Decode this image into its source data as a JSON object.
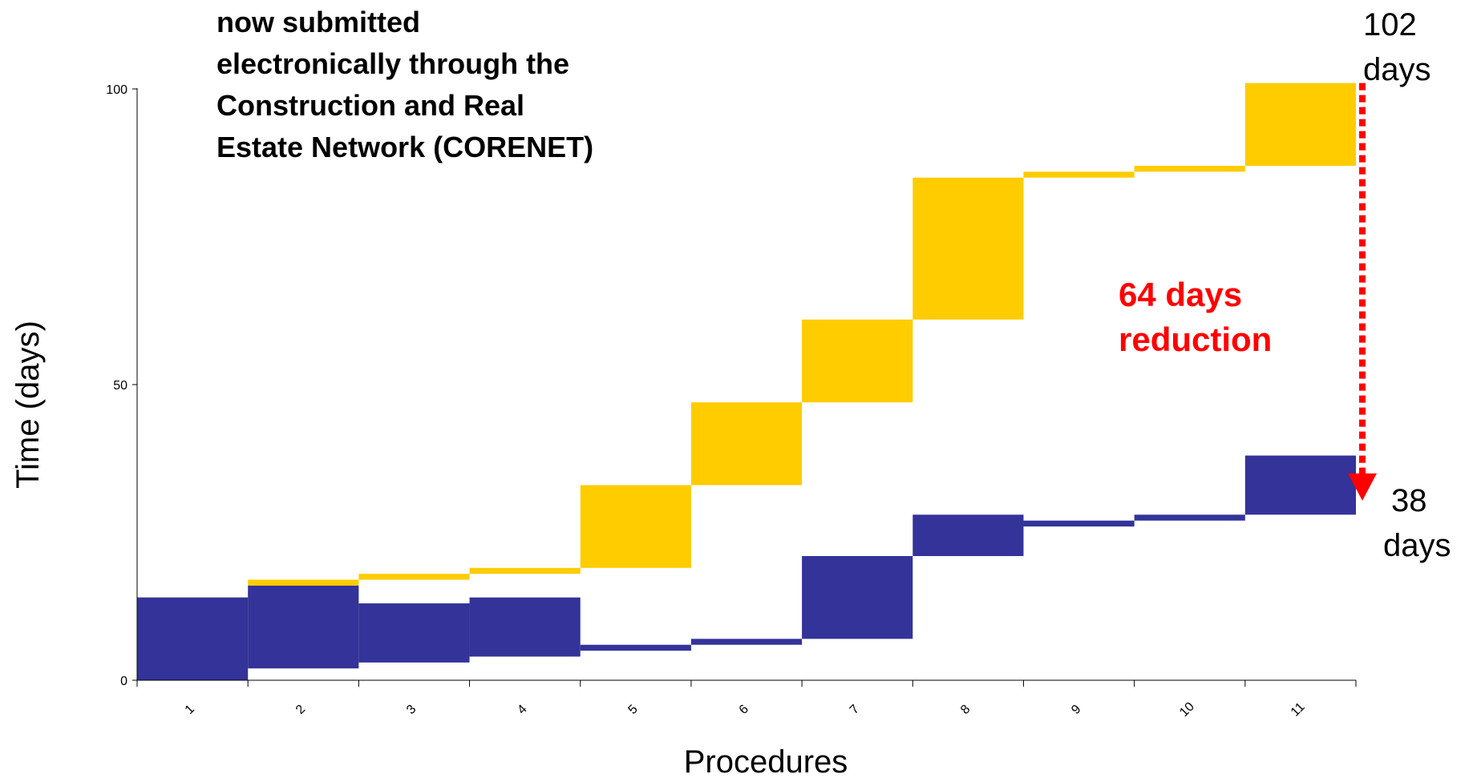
{
  "chart_data": {
    "type": "bar",
    "title": "",
    "caption_lines": [
      "now submitted",
      "electronically through the",
      "Construction and Real",
      "Estate Network (CORENET)"
    ],
    "xlabel": "Procedures",
    "ylabel": "Time (days)",
    "ylim": [
      0,
      100
    ],
    "yticks": [
      "0",
      "50",
      "100"
    ],
    "categories": [
      "1",
      "2",
      "3",
      "4",
      "5",
      "6",
      "7",
      "8",
      "9",
      "10",
      "11"
    ],
    "series": [
      {
        "color": "#FFCC00",
        "start": [
          0,
          16,
          17,
          18,
          19,
          33,
          47,
          61,
          85,
          86,
          87
        ],
        "end": [
          14,
          17,
          18,
          19,
          33,
          47,
          61,
          85,
          86,
          87,
          101
        ]
      },
      {
        "color": "#333399",
        "start": [
          0,
          2,
          3,
          4,
          5,
          6,
          7,
          21,
          26,
          27,
          28
        ],
        "end": [
          14,
          16,
          13,
          14,
          6,
          7,
          21,
          28,
          27,
          28,
          38
        ]
      }
    ],
    "annotations": {
      "before_total": [
        "102",
        "days"
      ],
      "after_total": [
        "38",
        "days"
      ],
      "reduction": [
        "64 days",
        "reduction"
      ],
      "reduction_color": "#FF0000",
      "arrow_from": 101,
      "arrow_to": 32
    }
  }
}
